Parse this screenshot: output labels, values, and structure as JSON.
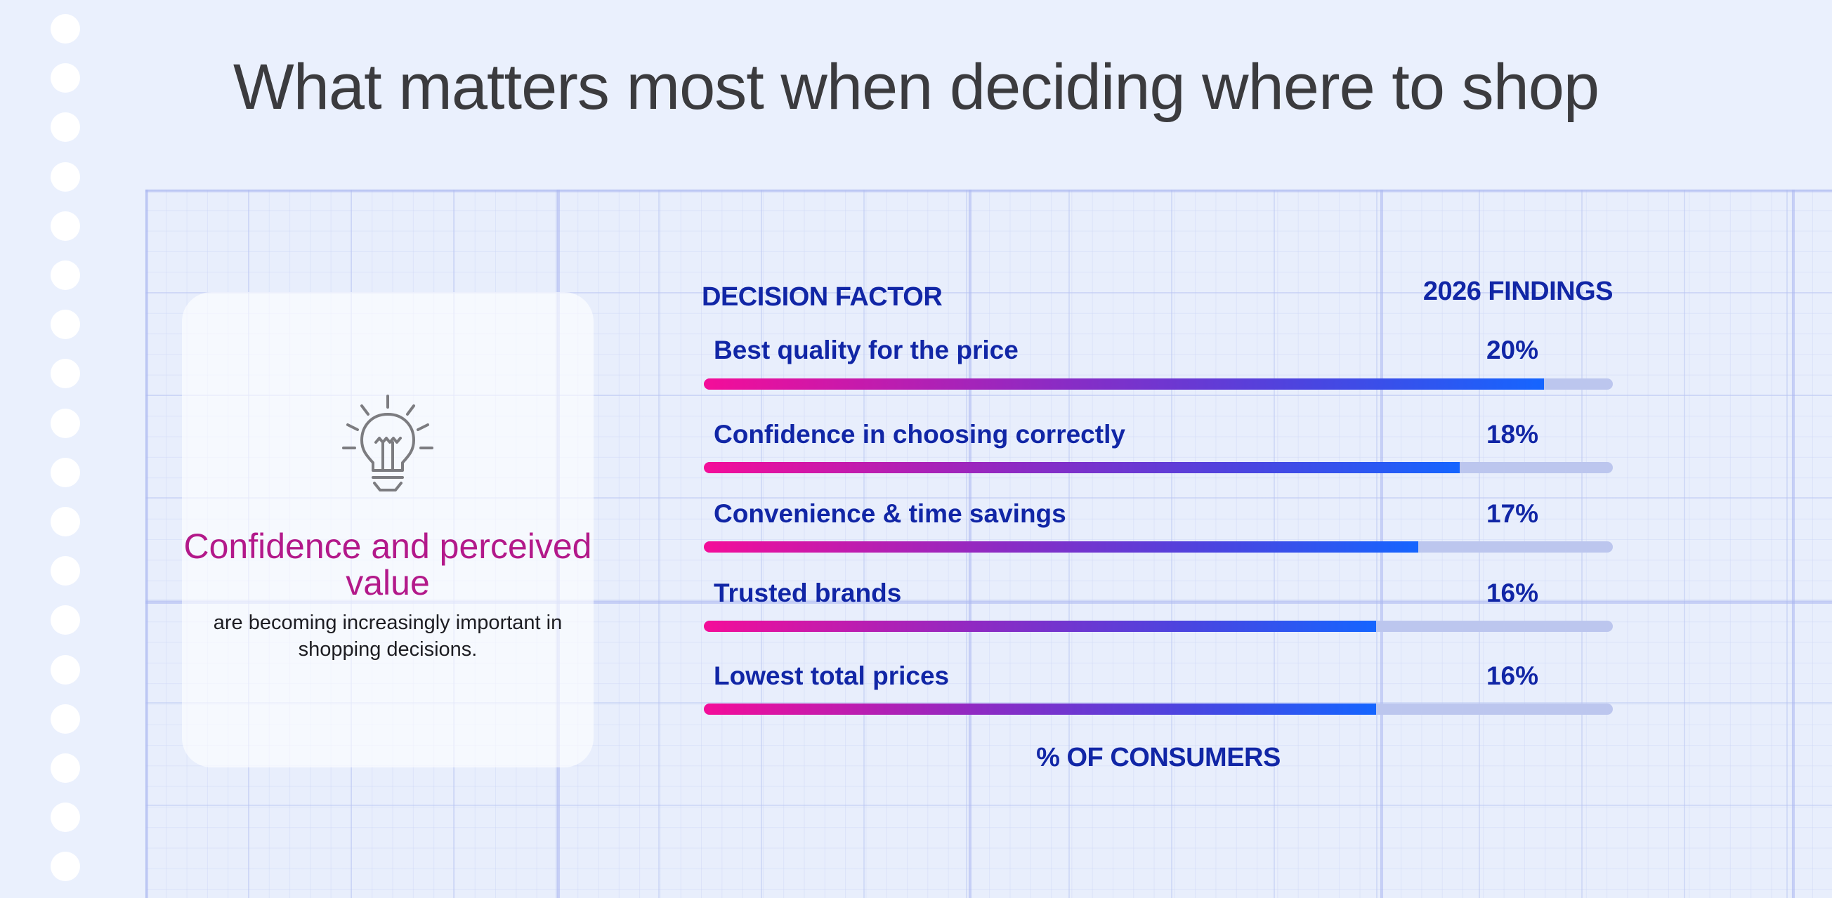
{
  "title": "What matters most when deciding where to shop",
  "callout": {
    "icon": "lightbulb-icon",
    "headline": "Confidence and perceived value",
    "body": "are becoming increasingly important in shopping decisions."
  },
  "colors": {
    "accent_magenta": "#b3198a",
    "label_blue": "#1126a6",
    "bar_start": "#f40d99",
    "bar_end": "#1565ff",
    "track": "#bcc6ee"
  },
  "chart_data": {
    "type": "bar",
    "orientation": "horizontal",
    "category_header": "DECISION FACTOR",
    "value_header": "2026 FINDINGS",
    "xlabel": "% OF CONSUMERS",
    "categories": [
      "Best quality for the price",
      "Confidence in choosing correctly",
      "Convenience & time savings",
      "Trusted brands",
      "Lowest total prices"
    ],
    "values": [
      20,
      18,
      17,
      16,
      16
    ],
    "value_labels": [
      "20%",
      "18%",
      "17%",
      "16%",
      "16%"
    ],
    "unit": "%",
    "grid": false
  }
}
